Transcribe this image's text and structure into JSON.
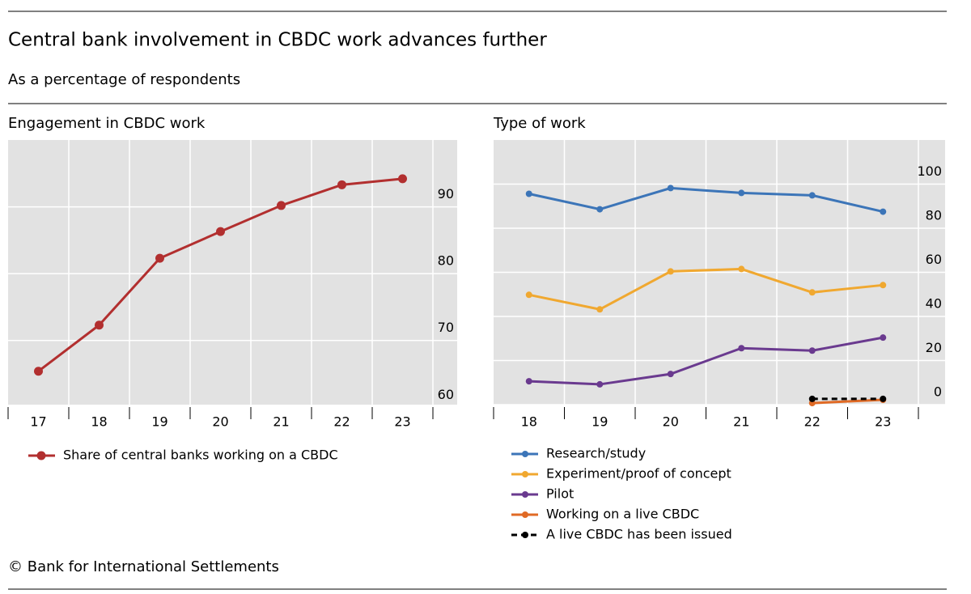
{
  "title": "Central bank involvement in CBDC work advances further",
  "subtitle": "As a percentage of respondents",
  "source": "© Bank for International Settlements",
  "chart_data": [
    {
      "type": "line",
      "title": "Engagement in CBDC work",
      "categories": [
        "17",
        "18",
        "19",
        "20",
        "21",
        "22",
        "23"
      ],
      "series": [
        {
          "name": "Share of central banks working on a CBDC",
          "color": "#b22f2f",
          "values": [
            65.4,
            72.3,
            82.3,
            86.3,
            90.2,
            93.3,
            94.2
          ]
        }
      ],
      "ylim": [
        60.4,
        100
      ],
      "yticks": [
        60,
        70,
        80,
        90
      ],
      "grid": true
    },
    {
      "type": "line",
      "title": "Type of work",
      "categories": [
        "18",
        "19",
        "20",
        "21",
        "22",
        "23"
      ],
      "series": [
        {
          "name": "Research/study",
          "color": "#3c75b8",
          "values": [
            95.6,
            88.6,
            98.2,
            96.0,
            94.9,
            87.5
          ]
        },
        {
          "name": "Experiment/proof of concept",
          "color": "#f0a830",
          "values": [
            49.8,
            43.2,
            60.4,
            61.5,
            50.9,
            54.2
          ]
        },
        {
          "name": "Pilot",
          "color": "#6a3a8f",
          "values": [
            10.6,
            9.2,
            13.9,
            25.6,
            24.5,
            30.4
          ]
        },
        {
          "name": "Working on a live CBDC",
          "color": "#e06a25",
          "values": [
            null,
            null,
            null,
            null,
            0.7,
            2.2
          ]
        },
        {
          "name": "A live CBDC has been issued",
          "color": "#000000",
          "dashed": true,
          "values": [
            null,
            null,
            null,
            null,
            2.6,
            2.6
          ]
        }
      ],
      "ylim": [
        0,
        120
      ],
      "yticks": [
        0,
        20,
        40,
        60,
        80,
        100
      ],
      "grid": true
    }
  ]
}
